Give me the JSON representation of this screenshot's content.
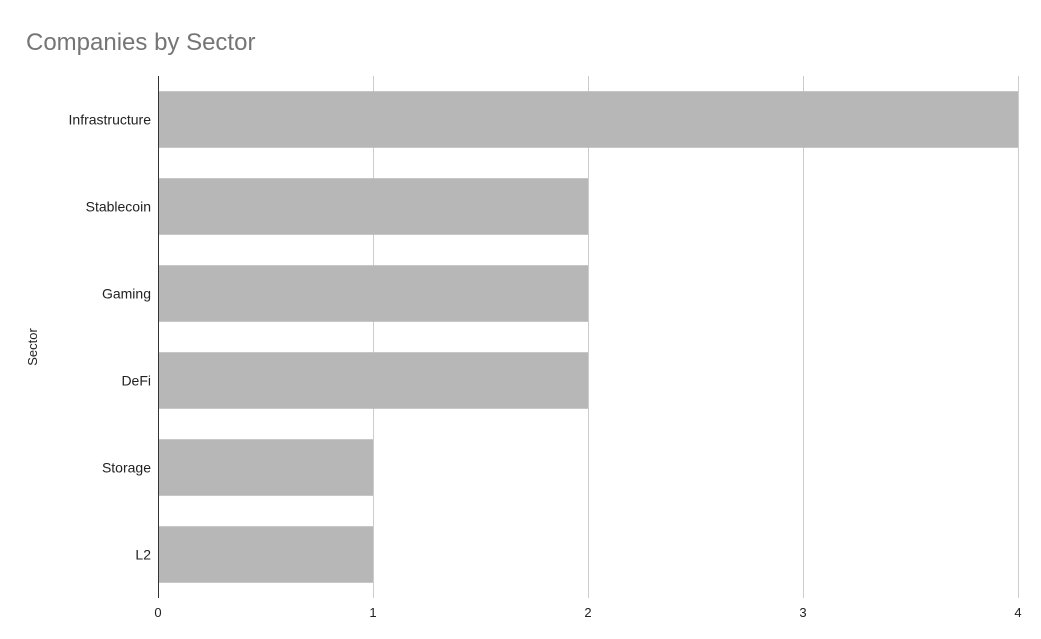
{
  "chart_data": {
    "type": "bar",
    "orientation": "horizontal",
    "title": "Companies by Sector",
    "ylabel": "Sector",
    "xlabel": "",
    "categories": [
      "Infrastructure",
      "Stablecoin",
      "Gaming",
      "DeFi",
      "Storage",
      "L2"
    ],
    "values": [
      4,
      2,
      2,
      2,
      1,
      1
    ],
    "xlim": [
      0,
      4
    ],
    "xticks": [
      "0",
      "1",
      "2",
      "3",
      "4"
    ],
    "grid": "vertical",
    "legend": "none",
    "colors": {
      "bar": "#b7b7b7",
      "grid": "#cccccc",
      "axis": "#333333",
      "title": "#757575"
    }
  }
}
